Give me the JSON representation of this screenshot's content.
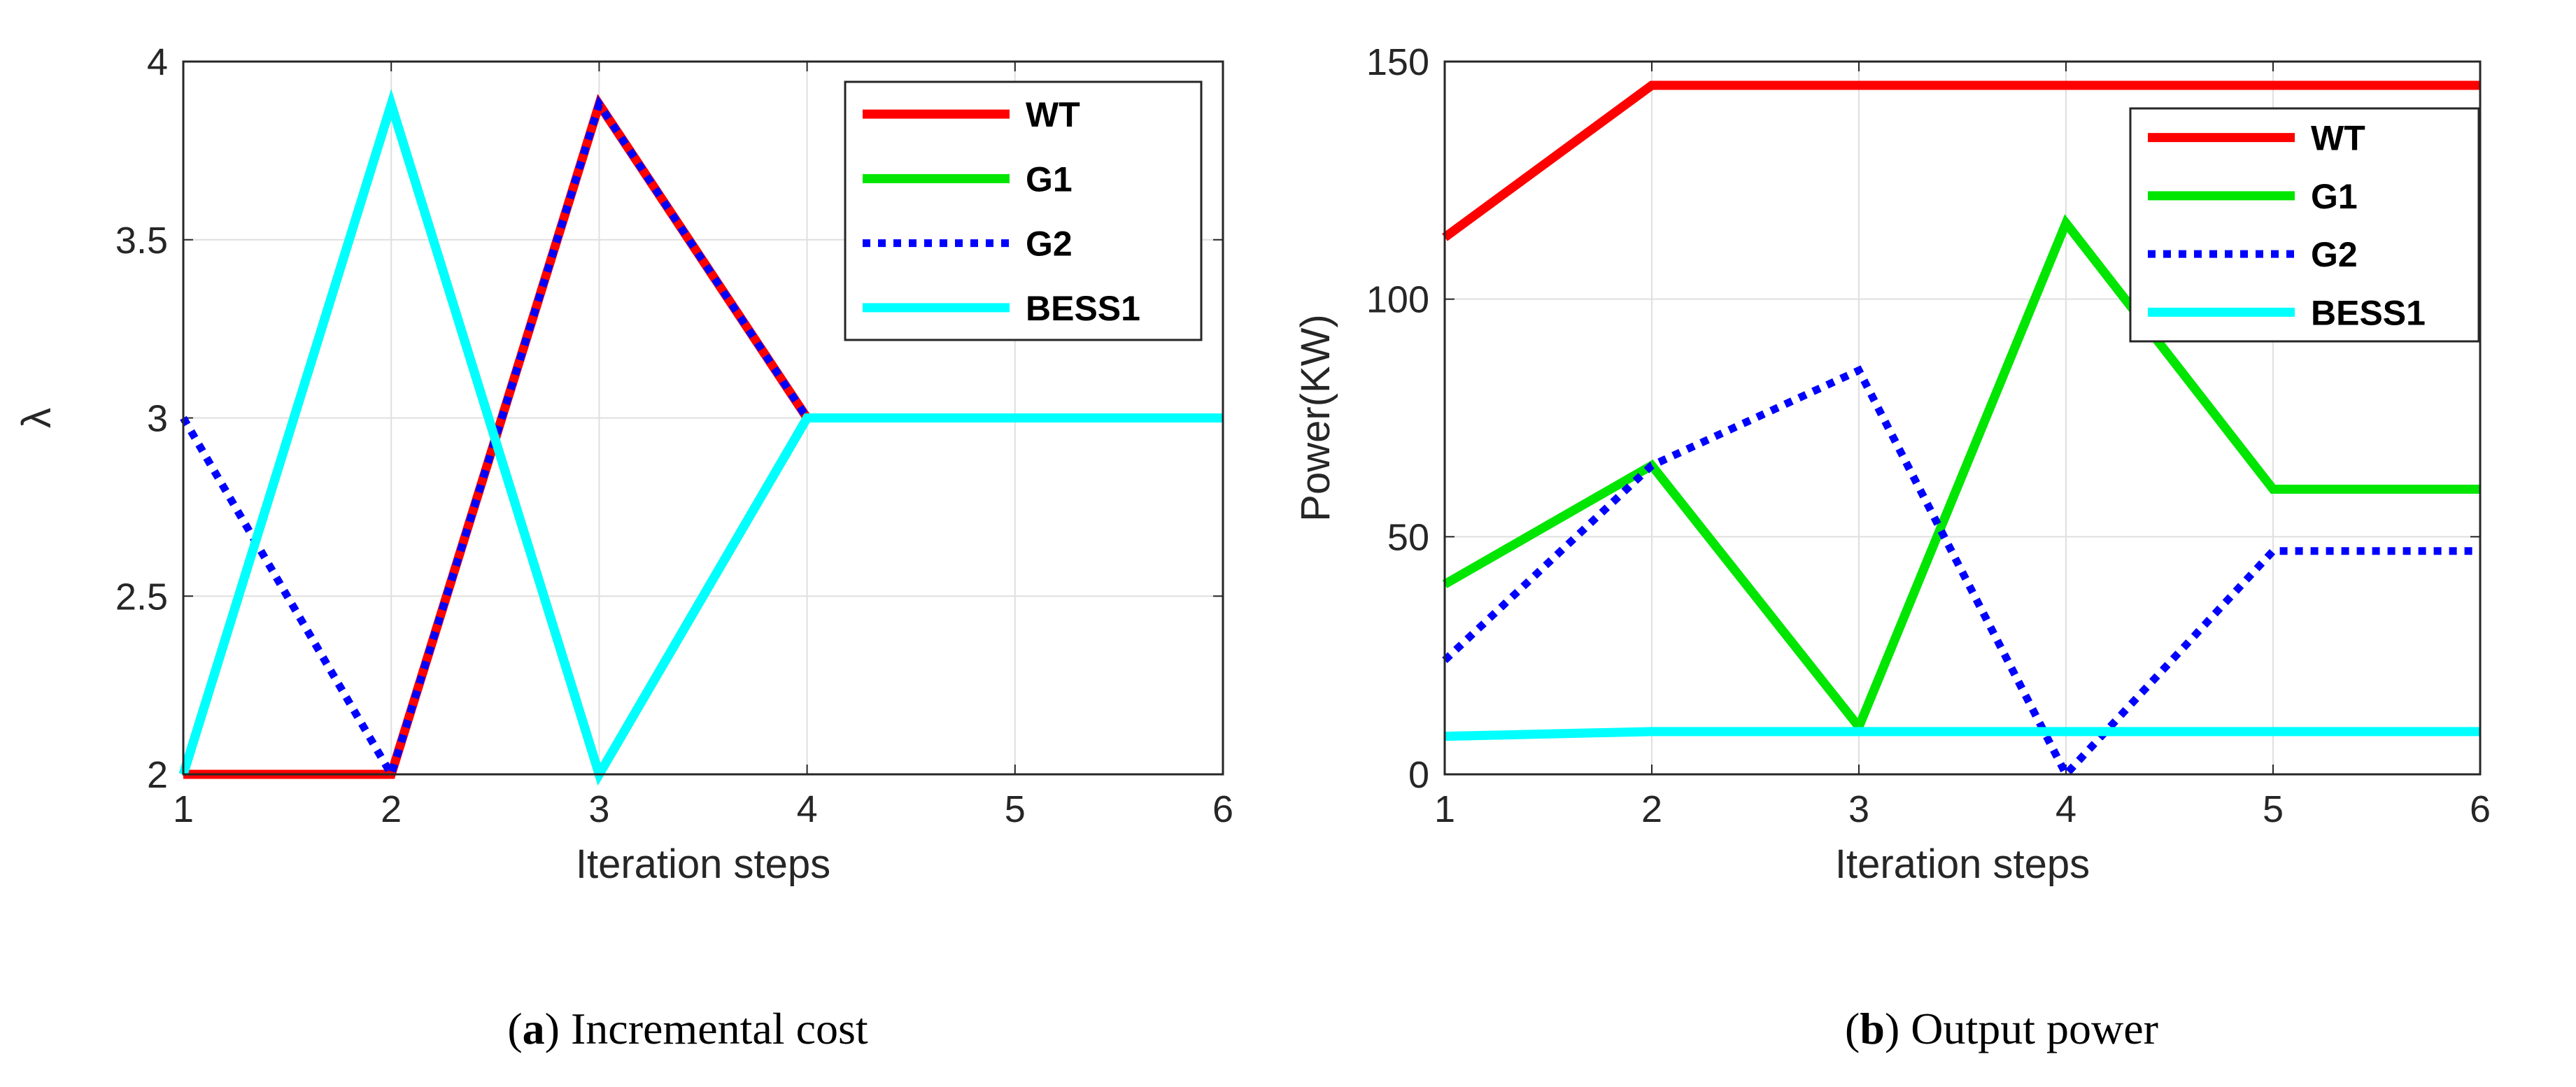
{
  "chart_data": [
    {
      "type": "line",
      "id": "panel-a",
      "caption_letter": "a",
      "caption_text": "Incremental cost",
      "xlabel": "Iteration steps",
      "ylabel": "λ",
      "x": [
        1,
        2,
        3,
        4,
        5,
        6
      ],
      "xlim": [
        1,
        6
      ],
      "ylim": [
        2,
        4
      ],
      "xticks": [
        "1",
        "2",
        "3",
        "4",
        "5",
        "6"
      ],
      "yticks": [
        "2",
        "2.5",
        "3",
        "3.5",
        "4"
      ],
      "ytick_values": [
        2,
        2.5,
        3,
        3.5,
        4
      ],
      "grid": true,
      "legend_position": "top-right",
      "series": [
        {
          "name": "WT",
          "color": "#ff0000",
          "style": "solid",
          "values": [
            2,
            2,
            3.88,
            3,
            3,
            3
          ]
        },
        {
          "name": "G1",
          "color": "#00e600",
          "style": "solid",
          "values": [
            2,
            3.88,
            2,
            3,
            3,
            3
          ]
        },
        {
          "name": "G2",
          "color": "#0000ff",
          "style": "dotted",
          "values": [
            3,
            2,
            3.88,
            3,
            3,
            3
          ]
        },
        {
          "name": "BESS1",
          "color": "#00ffff",
          "style": "solid",
          "values": [
            2,
            3.88,
            2,
            3,
            3,
            3
          ]
        }
      ]
    },
    {
      "type": "line",
      "id": "panel-b",
      "caption_letter": "b",
      "caption_text": "Output power",
      "xlabel": "Iteration steps",
      "ylabel": "Power(KW)",
      "x": [
        1,
        2,
        3,
        4,
        5,
        6
      ],
      "xlim": [
        1,
        6
      ],
      "ylim": [
        0,
        150
      ],
      "xticks": [
        "1",
        "2",
        "3",
        "4",
        "5",
        "6"
      ],
      "yticks": [
        "0",
        "50",
        "100",
        "150"
      ],
      "ytick_values": [
        0,
        50,
        100,
        150
      ],
      "grid": true,
      "legend_position": "top-right",
      "series": [
        {
          "name": "WT",
          "color": "#ff0000",
          "style": "solid",
          "values": [
            113,
            145,
            145,
            145,
            145,
            145
          ]
        },
        {
          "name": "G1",
          "color": "#00e600",
          "style": "solid",
          "values": [
            40,
            65,
            10,
            116,
            60,
            60
          ]
        },
        {
          "name": "G2",
          "color": "#0000ff",
          "style": "dotted",
          "values": [
            24,
            65,
            85,
            0,
            47,
            47
          ]
        },
        {
          "name": "BESS1",
          "color": "#00ffff",
          "style": "solid",
          "values": [
            8,
            9,
            9,
            9,
            9,
            9
          ]
        }
      ]
    }
  ]
}
